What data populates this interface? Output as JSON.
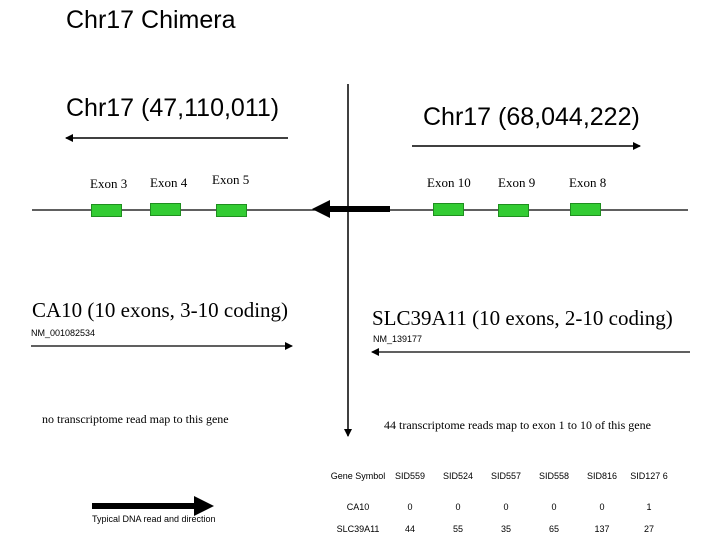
{
  "title": "Chr17 Chimera",
  "left_coord": "Chr17 (47,110,011)",
  "right_coord": "Chr17 (68,044,222)",
  "exons_left": [
    "Exon 3",
    "Exon 4",
    "Exon 5"
  ],
  "exons_right": [
    "Exon 10",
    "Exon 9",
    "Exon 8"
  ],
  "genes": {
    "ca10": {
      "title": "CA10 (10 exons, 3-10 coding)",
      "accession": "NM_001082534",
      "note": "no  transcriptome read map to this gene"
    },
    "slc39a11": {
      "title": "SLC39A11 (10 exons, 2-10 coding)",
      "accession": "NM_139177",
      "note": "44  transcriptome reads map to exon 1 to 10 of  this gene"
    }
  },
  "legend": "Typical DNA read and direction",
  "table": {
    "headers": [
      "Gene Symbol",
      "SID559",
      "SID524",
      "SID557",
      "SID558",
      "SID816",
      "SID127 6"
    ],
    "rows": [
      [
        "CA10",
        "0",
        "0",
        "0",
        "0",
        "0",
        "1"
      ],
      [
        "SLC39A11",
        "44",
        "55",
        "35",
        "65",
        "137",
        "27"
      ]
    ]
  },
  "colors": {
    "exon": "#33cc33",
    "line": "#000000"
  }
}
